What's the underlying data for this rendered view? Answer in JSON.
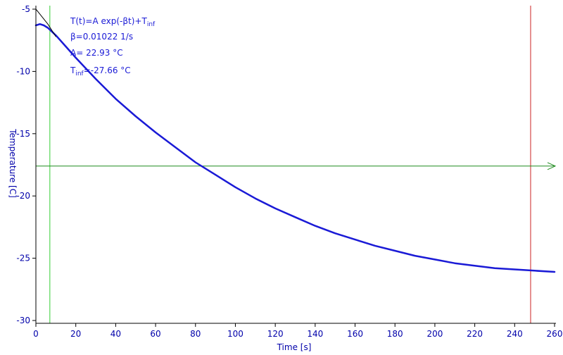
{
  "chart_data": {
    "type": "line",
    "xlabel": "Time [s]",
    "ylabel": "Temperature [C]",
    "xlim": [
      0,
      260
    ],
    "ylim": [
      -30,
      -5
    ],
    "x_ticks": [
      0,
      20,
      40,
      60,
      80,
      100,
      120,
      140,
      160,
      180,
      200,
      220,
      240,
      260
    ],
    "y_ticks": [
      -5,
      -10,
      -15,
      -20,
      -25,
      -30
    ],
    "grid": false,
    "series": [
      {
        "color": "#1a1ad6",
        "x": [
          0,
          2,
          4,
          6,
          8,
          10,
          15,
          20,
          30,
          40,
          50,
          60,
          70,
          80,
          90,
          100,
          110,
          120,
          130,
          140,
          150,
          160,
          170,
          180,
          190,
          200,
          210,
          220,
          230,
          240,
          250,
          260
        ],
        "y": [
          -6.3,
          -6.2,
          -6.3,
          -6.5,
          -6.8,
          -7.1,
          -8.0,
          -8.9,
          -10.6,
          -12.2,
          -13.6,
          -14.9,
          -16.1,
          -17.3,
          -18.3,
          -19.3,
          -20.2,
          -21.0,
          -21.7,
          -22.4,
          -23.0,
          -23.5,
          -24.0,
          -24.4,
          -24.8,
          -25.1,
          -25.4,
          -25.6,
          -25.8,
          -25.9,
          -26.0,
          -26.1
        ]
      },
      {
        "color": "#000000",
        "x": [
          0,
          2,
          4,
          6,
          8,
          10
        ],
        "y": [
          -5.0,
          -5.4,
          -5.8,
          -6.2,
          -6.7,
          -7.2
        ]
      }
    ],
    "markers": {
      "vertical_green_x": 7,
      "vertical_red_x": 248,
      "horizontal_green_y": -17.6
    },
    "fit_annotation": {
      "line1_main": "T(t)=A exp(-βt)+T",
      "line1_sub": "inf",
      "line2": "β=0.01022 1/s",
      "line3": "A= 22.93 °C",
      "line4_main": "T",
      "line4_sub": "inf",
      "line4_rest": "=-27.66 °C"
    },
    "colors": {
      "axis": "#000000",
      "tick_text": "#0000aa",
      "green_line": "#33cc33",
      "horizontal_line": "#1f8a1f",
      "red_line": "#cc2222",
      "fit_text": "#1a1ad6"
    }
  }
}
